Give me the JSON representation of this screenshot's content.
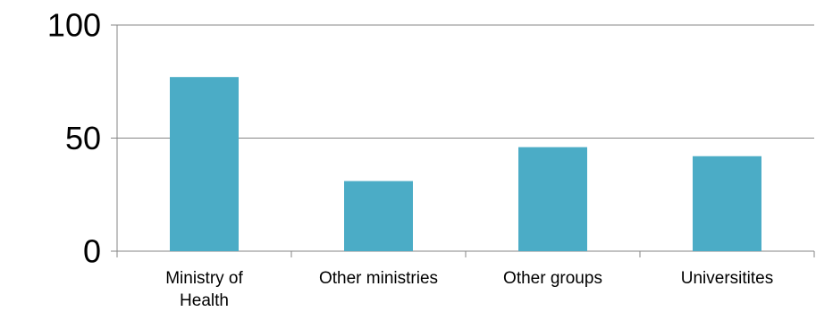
{
  "chart_data": {
    "type": "bar",
    "categories": [
      "Ministry of Health",
      "Other ministries",
      "Other groups",
      "Universitites"
    ],
    "category_label_lines": [
      [
        "Ministry of",
        "Health"
      ],
      [
        "Other ministries"
      ],
      [
        "Other groups"
      ],
      [
        "Universitites"
      ]
    ],
    "values": [
      77,
      31,
      46,
      42
    ],
    "ylim": [
      0,
      100
    ],
    "yticks": [
      0,
      50,
      100
    ],
    "ytick_labels": [
      "0",
      "50",
      "100"
    ],
    "grid": true,
    "legend": false,
    "title": "",
    "xlabel": "",
    "ylabel": "",
    "colors": {
      "bar": "#4BACC6",
      "axis": "#868686",
      "grid": "#868686"
    }
  }
}
